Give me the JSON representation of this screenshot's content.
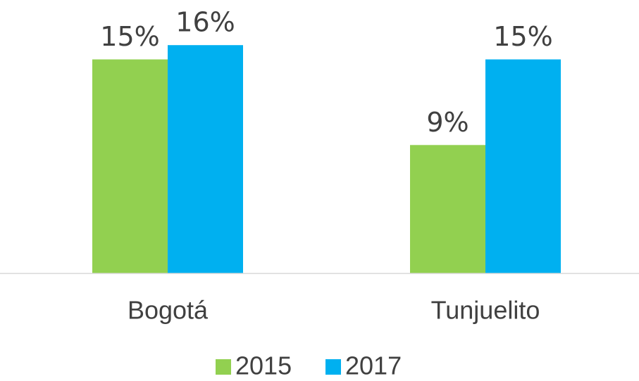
{
  "chart_data": {
    "type": "bar",
    "categories": [
      "Bogotá",
      "Tunjuelito"
    ],
    "series": [
      {
        "name": "2015",
        "color": "#92d050",
        "values": [
          15,
          9
        ],
        "value_labels": [
          "15%",
          "9%"
        ]
      },
      {
        "name": "2017",
        "color": "#00b0f0",
        "values": [
          16,
          15
        ],
        "value_labels": [
          "16%",
          "15%"
        ]
      }
    ],
    "ylim": [
      0,
      18
    ],
    "grid": false,
    "legend": "bottom"
  }
}
